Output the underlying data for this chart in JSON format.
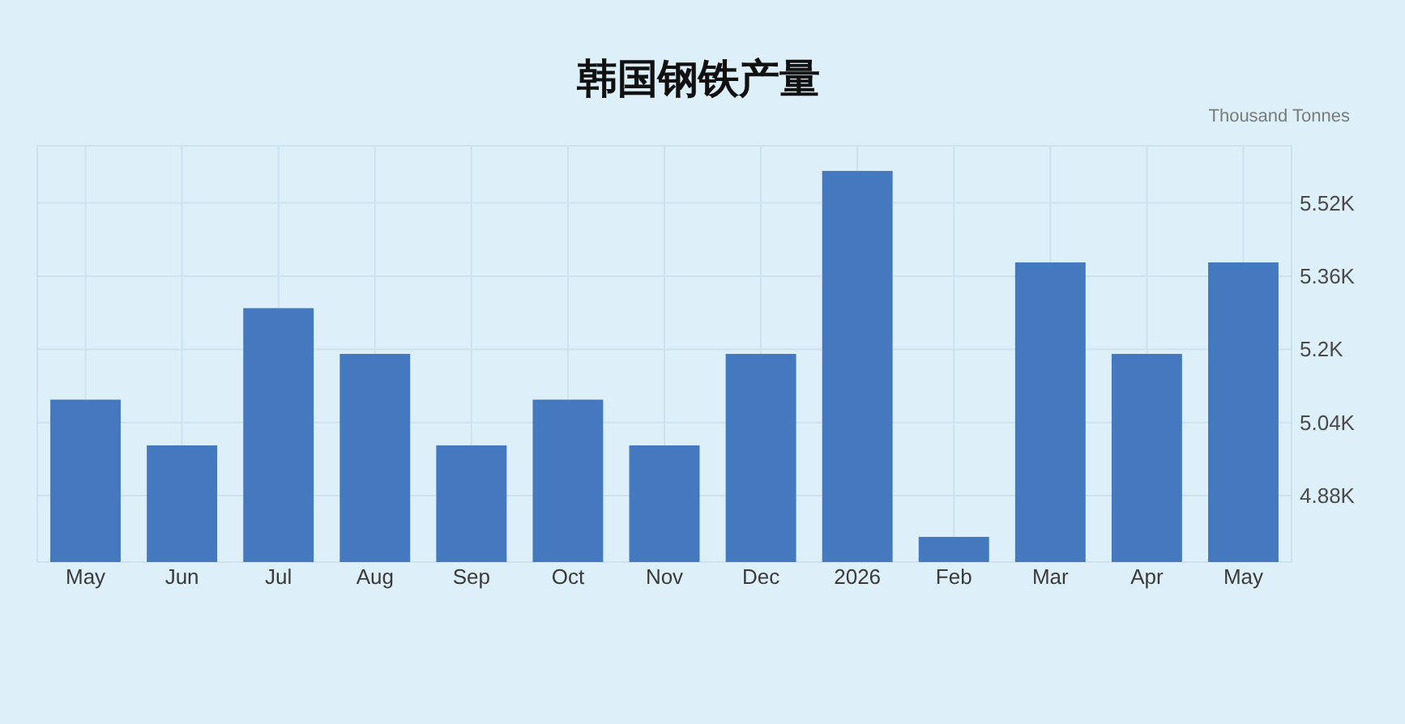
{
  "chart_data": {
    "type": "bar",
    "title": "韩国钢铁产量",
    "ylabel": "Thousand Tonnes",
    "categories": [
      "May",
      "Jun",
      "Jul",
      "Aug",
      "Sep",
      "Oct",
      "Nov",
      "Dec",
      "2026",
      "Feb",
      "Mar",
      "Apr",
      "May"
    ],
    "values": [
      5090,
      4990,
      5290,
      5190,
      4990,
      5090,
      4990,
      5190,
      5590,
      4790,
      5390,
      5190,
      5390
    ],
    "color": "#4479bf",
    "ylim": [
      4735,
      5645
    ],
    "yticks": [
      {
        "value": 4880,
        "label": "4.88K"
      },
      {
        "value": 5040,
        "label": "5.04K"
      },
      {
        "value": 5200,
        "label": "5.2K"
      },
      {
        "value": 5360,
        "label": "5.36K"
      },
      {
        "value": 5520,
        "label": "5.52K"
      }
    ],
    "grid": true
  }
}
